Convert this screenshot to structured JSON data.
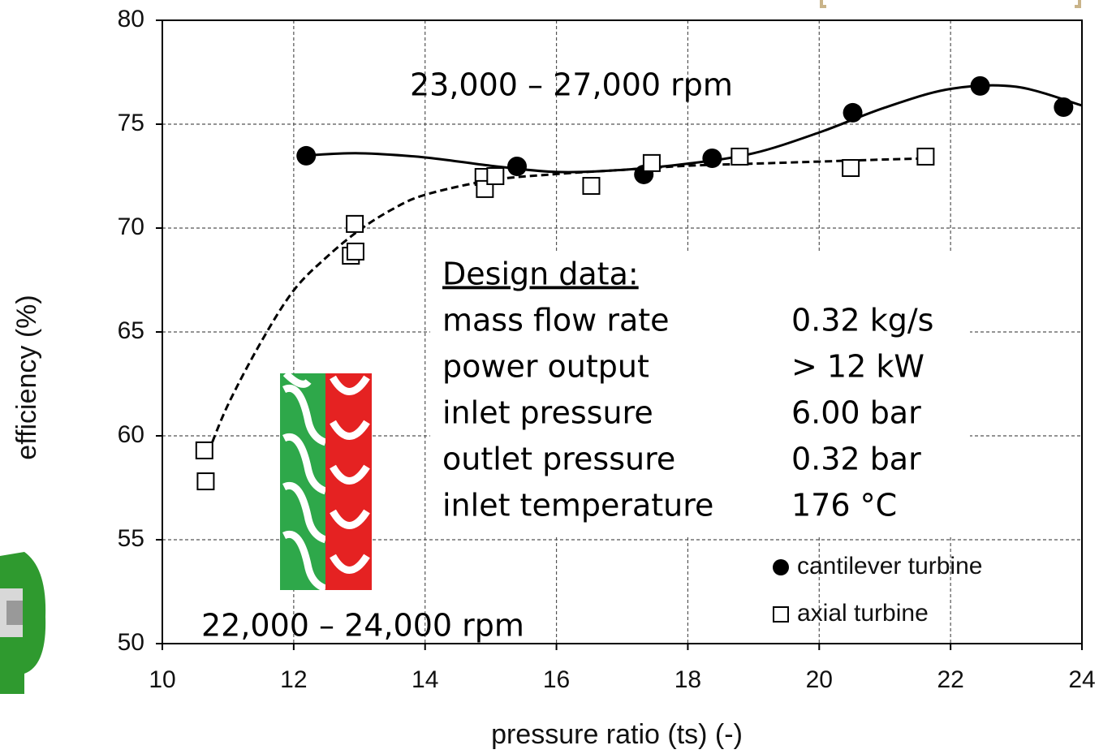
{
  "chart_data": {
    "type": "scatter",
    "xlabel": "pressure ratio (ts) (-)",
    "ylabel": "efficiency (%)",
    "xlim": [
      10,
      24
    ],
    "xticks": [
      10,
      12,
      14,
      16,
      18,
      20,
      22,
      24
    ],
    "ylim": [
      50,
      80
    ],
    "yticks": [
      50,
      55,
      60,
      65,
      70,
      75,
      80
    ],
    "grid": true,
    "legend": "lower right",
    "series": [
      {
        "name": "cantilever turbine",
        "marker": "circle",
        "color": "#000000",
        "x": [
          12.19,
          15.4,
          17.33,
          18.37,
          20.51,
          22.45,
          23.72
        ],
        "values": [
          73.48,
          72.97,
          72.58,
          73.36,
          75.55,
          76.84,
          75.82
        ]
      },
      {
        "name": "axial turbine",
        "marker": "square",
        "color": "#000000",
        "x": [
          10.64,
          10.66,
          12.93,
          12.87,
          12.94,
          14.89,
          14.91,
          15.07,
          16.53,
          17.45,
          18.79,
          20.48,
          21.62
        ],
        "values": [
          59.3,
          57.81,
          70.2,
          68.67,
          68.87,
          72.46,
          71.88,
          72.5,
          72.03,
          73.13,
          73.44,
          72.89,
          73.44
        ]
      }
    ],
    "curves": [
      {
        "style": "solid",
        "color": "#000000",
        "x": [
          12.2,
          13,
          14,
          15,
          16,
          17,
          18,
          19,
          20,
          21,
          22,
          23,
          24
        ],
        "values": [
          73.5,
          73.6,
          73.4,
          73.0,
          72.7,
          72.8,
          73.1,
          73.6,
          74.6,
          75.8,
          76.7,
          76.8,
          75.9
        ]
      },
      {
        "style": "dashed",
        "color": "#000000",
        "x": [
          10.7,
          11,
          11.5,
          12,
          12.5,
          13,
          13.5,
          14,
          15,
          16,
          17,
          18,
          19,
          20,
          21,
          21.6
        ],
        "values": [
          59.2,
          61.5,
          64.5,
          67.0,
          68.6,
          69.9,
          70.9,
          71.6,
          72.3,
          72.6,
          72.8,
          73.0,
          73.1,
          73.2,
          73.3,
          73.35
        ]
      }
    ],
    "annotations": [
      "23,000 – 27,000 rpm",
      "22,000 – 24,000 rpm"
    ],
    "design_table": {
      "title": "Design data:",
      "rows": [
        [
          "mass flow rate",
          "0.32 kg/s"
        ],
        [
          "power output",
          "> 12 kW"
        ],
        [
          "inlet pressure",
          "6.00 bar"
        ],
        [
          "outlet pressure",
          "0.32 bar"
        ],
        [
          "inlet temperature",
          "176 °C"
        ]
      ]
    }
  }
}
